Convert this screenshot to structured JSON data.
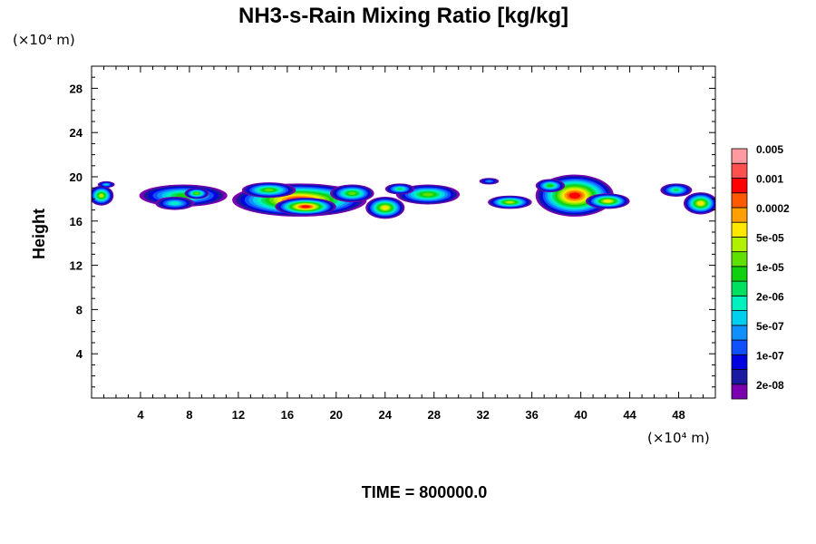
{
  "chart_data": {
    "type": "heatmap",
    "title": "NH3-s-Rain Mixing Ratio [kg/kg]",
    "ylabel": "Height",
    "x_unit": "(×10⁴ m)",
    "y_unit": "(×10⁴ m)",
    "time_label": "TIME = 800000.0",
    "xlim": [
      0,
      51
    ],
    "ylim": [
      0,
      30
    ],
    "x_ticks": [
      4,
      8,
      12,
      16,
      20,
      24,
      28,
      32,
      36,
      40,
      44,
      48
    ],
    "x_tick_labels": [
      "4",
      "8",
      "12",
      "16",
      "20",
      "24",
      "28",
      "32",
      "36",
      "40",
      "44",
      "48"
    ],
    "y_ticks": [
      4,
      8,
      12,
      16,
      20,
      24,
      28
    ],
    "y_tick_labels": [
      "4",
      "8",
      "12",
      "16",
      "20",
      "24",
      "28"
    ],
    "colorbar": {
      "colors": [
        "#7a00b0",
        "#1a1aa0",
        "#0000e0",
        "#1050ff",
        "#1090ff",
        "#00d0f0",
        "#00f0c0",
        "#00e060",
        "#10d010",
        "#60e000",
        "#b0f000",
        "#ffe800",
        "#ffa000",
        "#ff5a00",
        "#ff0000",
        "#ff5050",
        "#ff9aa0"
      ],
      "labels": [
        "2e-08",
        "1e-07",
        "5e-07",
        "2e-06",
        "1e-05",
        "5e-05",
        "0.0002",
        "0.001",
        "0.005"
      ]
    },
    "blobs": [
      {
        "x": 0.8,
        "y": 18.3,
        "rx": 1.0,
        "ry": 0.9,
        "level": 10
      },
      {
        "x": 1.2,
        "y": 19.3,
        "rx": 0.7,
        "ry": 0.3,
        "level": 5
      },
      {
        "x": 7.5,
        "y": 18.3,
        "rx": 3.6,
        "ry": 1.0,
        "level": 8
      },
      {
        "x": 6.8,
        "y": 17.6,
        "rx": 1.6,
        "ry": 0.6,
        "level": 6
      },
      {
        "x": 8.6,
        "y": 18.5,
        "rx": 1.0,
        "ry": 0.5,
        "level": 9
      },
      {
        "x": 17.0,
        "y": 17.9,
        "rx": 5.5,
        "ry": 1.5,
        "level": 14
      },
      {
        "x": 17.5,
        "y": 17.3,
        "rx": 2.5,
        "ry": 0.8,
        "level": 14
      },
      {
        "x": 14.5,
        "y": 18.8,
        "rx": 2.2,
        "ry": 0.7,
        "level": 9
      },
      {
        "x": 21.3,
        "y": 18.5,
        "rx": 1.8,
        "ry": 0.8,
        "level": 9
      },
      {
        "x": 24.0,
        "y": 17.2,
        "rx": 1.6,
        "ry": 1.0,
        "level": 11
      },
      {
        "x": 27.5,
        "y": 18.4,
        "rx": 2.6,
        "ry": 0.9,
        "level": 9
      },
      {
        "x": 25.2,
        "y": 18.9,
        "rx": 1.2,
        "ry": 0.5,
        "level": 7
      },
      {
        "x": 32.5,
        "y": 19.6,
        "rx": 0.8,
        "ry": 0.3,
        "level": 4
      },
      {
        "x": 34.2,
        "y": 17.7,
        "rx": 1.8,
        "ry": 0.6,
        "level": 10
      },
      {
        "x": 39.5,
        "y": 18.3,
        "rx": 3.2,
        "ry": 1.9,
        "level": 14
      },
      {
        "x": 42.2,
        "y": 17.8,
        "rx": 1.8,
        "ry": 0.7,
        "level": 11
      },
      {
        "x": 37.5,
        "y": 19.2,
        "rx": 1.2,
        "ry": 0.6,
        "level": 8
      },
      {
        "x": 47.8,
        "y": 18.8,
        "rx": 1.3,
        "ry": 0.6,
        "level": 7
      },
      {
        "x": 49.8,
        "y": 17.6,
        "rx": 1.4,
        "ry": 1.0,
        "level": 11
      }
    ]
  }
}
